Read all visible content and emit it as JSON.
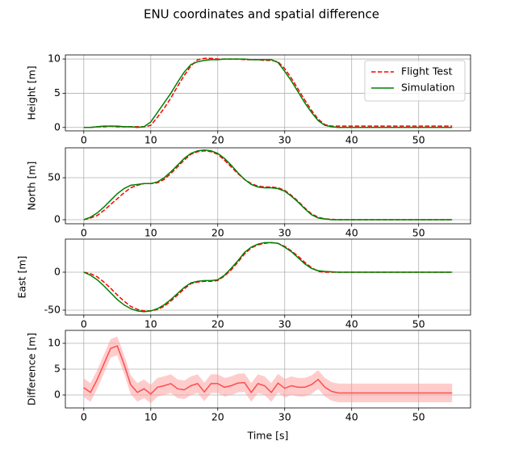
{
  "title": "ENU coordinates and spatial difference",
  "chart_data": [
    {
      "type": "line",
      "y_label": "Height [m]",
      "x": [
        0,
        1,
        2,
        3,
        4,
        5,
        6,
        7,
        8,
        9,
        10,
        11,
        12,
        13,
        14,
        15,
        16,
        17,
        18,
        19,
        20,
        21,
        22,
        23,
        24,
        25,
        26,
        27,
        28,
        29,
        30,
        31,
        32,
        33,
        34,
        35,
        36,
        37,
        38,
        40,
        45,
        50,
        55
      ],
      "series": [
        {
          "name": "Flight Test",
          "color": "#ff0000",
          "style": "dashed",
          "values": [
            0,
            0,
            0.1,
            0.1,
            0.2,
            0.1,
            0.1,
            0.1,
            0.1,
            0.1,
            0.3,
            1.5,
            2.8,
            4.3,
            6,
            7.6,
            9,
            9.9,
            10.1,
            10.1,
            10,
            10,
            10,
            10,
            9.9,
            9.9,
            9.9,
            9.8,
            9.8,
            9.6,
            8.6,
            7.2,
            5.6,
            4,
            2.5,
            1.2,
            0.4,
            0.2,
            0.2,
            0.2,
            0.2,
            0.2,
            0.2
          ]
        },
        {
          "name": "Simulation",
          "color": "#008000",
          "style": "solid",
          "values": [
            0,
            0,
            0.1,
            0.2,
            0.2,
            0.2,
            0.1,
            0.1,
            0,
            0.1,
            0.8,
            2.2,
            3.6,
            5,
            6.6,
            8.1,
            9.2,
            9.6,
            9.8,
            9.9,
            9.9,
            10,
            10,
            10,
            10,
            9.9,
            9.9,
            9.9,
            9.9,
            9.5,
            8.2,
            6.8,
            5.2,
            3.6,
            2.2,
            1,
            0.3,
            0.1,
            0,
            0,
            0,
            0,
            0
          ]
        }
      ],
      "xlim": [
        -2.75,
        57.75
      ],
      "xticks": [
        0,
        10,
        20,
        30,
        40,
        50
      ],
      "ylim": [
        -0.5,
        10.6
      ],
      "yticks": [
        0,
        5,
        10
      ],
      "grid": true,
      "legend": "upper right"
    },
    {
      "type": "line",
      "y_label": "North [m]",
      "x": [
        0,
        1,
        2,
        3,
        4,
        5,
        6,
        7,
        8,
        9,
        10,
        11,
        12,
        13,
        14,
        15,
        16,
        17,
        18,
        19,
        20,
        21,
        22,
        23,
        24,
        25,
        26,
        27,
        28,
        29,
        30,
        31,
        32,
        33,
        34,
        35,
        36,
        37,
        38,
        40,
        45,
        50,
        55
      ],
      "series": [
        {
          "color": "#ff0000",
          "style": "dashed",
          "values": [
            0,
            2,
            5,
            11,
            18,
            25,
            32,
            38,
            41,
            43,
            43,
            44,
            48,
            55,
            63,
            71,
            78,
            81,
            82,
            81,
            78,
            71,
            63,
            55,
            48,
            43,
            40,
            39,
            39,
            38,
            35,
            29,
            22,
            14,
            7,
            3,
            1,
            0.5,
            0,
            0,
            0,
            0,
            0
          ]
        },
        {
          "color": "#008000",
          "style": "solid",
          "values": [
            0,
            3,
            8,
            15,
            23,
            31,
            37,
            41,
            42,
            43,
            43,
            45,
            50,
            57,
            65,
            73,
            79,
            82,
            83,
            82,
            79,
            73,
            65,
            56,
            48,
            42,
            39,
            38,
            38,
            37,
            34,
            28,
            21,
            13,
            6,
            2,
            1,
            0,
            0,
            0,
            0,
            0,
            0
          ]
        }
      ],
      "xlim": [
        -2.75,
        57.75
      ],
      "xticks": [
        0,
        10,
        20,
        30,
        40,
        50
      ],
      "ylim": [
        -4.8,
        85.6
      ],
      "yticks": [
        0,
        50
      ],
      "grid": true
    },
    {
      "type": "line",
      "y_label": "East [m]",
      "x": [
        0,
        1,
        2,
        3,
        4,
        5,
        6,
        7,
        8,
        9,
        10,
        11,
        12,
        13,
        14,
        15,
        16,
        17,
        18,
        19,
        20,
        21,
        22,
        23,
        24,
        25,
        26,
        27,
        28,
        29,
        30,
        31,
        32,
        33,
        34,
        35,
        36,
        37,
        38,
        40,
        45,
        50,
        55
      ],
      "series": [
        {
          "color": "#ff0000",
          "style": "dashed",
          "values": [
            0,
            -2,
            -6,
            -13,
            -21,
            -30,
            -38,
            -45,
            -49,
            -51,
            -51,
            -49,
            -45,
            -38,
            -30,
            -22,
            -15,
            -13,
            -12,
            -12,
            -11,
            -5,
            3,
            13,
            24,
            32,
            36,
            38,
            39,
            38,
            34,
            28,
            21,
            13,
            6,
            1,
            0,
            0,
            0,
            0,
            0,
            0,
            0
          ]
        },
        {
          "color": "#008000",
          "style": "solid",
          "values": [
            0,
            -4,
            -10,
            -18,
            -27,
            -36,
            -43,
            -48,
            -51,
            -52,
            -51,
            -48,
            -43,
            -36,
            -28,
            -20,
            -14,
            -12,
            -11,
            -11,
            -10,
            -4,
            5,
            15,
            26,
            33,
            37,
            39,
            39,
            38,
            33,
            27,
            19,
            11,
            5,
            2,
            1,
            0.5,
            0,
            0,
            0,
            0,
            0
          ]
        }
      ],
      "xlim": [
        -2.75,
        57.75
      ],
      "xticks": [
        0,
        10,
        20,
        30,
        40,
        50
      ],
      "ylim": [
        -56.4,
        43.6
      ],
      "yticks": [
        -50,
        0
      ],
      "grid": true
    },
    {
      "type": "line",
      "y_label": "Difference [m]",
      "x_label": "Time [s]",
      "x": [
        0,
        1,
        2,
        3,
        4,
        5,
        6,
        7,
        8,
        9,
        10,
        11,
        12,
        13,
        14,
        15,
        16,
        17,
        18,
        19,
        20,
        21,
        22,
        23,
        24,
        25,
        26,
        27,
        28,
        29,
        30,
        31,
        32,
        33,
        34,
        35,
        36,
        37,
        38,
        40,
        45,
        50,
        55
      ],
      "series": [
        {
          "color": "#ff0000",
          "style": "solid",
          "values": [
            1.4,
            0.5,
            3,
            6,
            9,
            9.5,
            6,
            2,
            0.5,
            1.2,
            0.2,
            1.5,
            1.8,
            2.2,
            1.2,
            1,
            1.8,
            2.2,
            0.6,
            2.2,
            2.2,
            1.5,
            1.8,
            2.3,
            2.4,
            0.5,
            2.2,
            1.8,
            0.5,
            2.3,
            1.3,
            1.8,
            1.5,
            1.5,
            2,
            3,
            1.5,
            0.7,
            0.4,
            0.4,
            0.4,
            0.4,
            0.4
          ]
        },
        {
          "color": "#ff9999",
          "style": "band",
          "upper": [
            3.2,
            2.3,
            4.8,
            7.8,
            10.8,
            11.3,
            7.8,
            3.8,
            2.3,
            3,
            2,
            3.3,
            3.6,
            4,
            3,
            2.8,
            3.6,
            4,
            2.4,
            4,
            4,
            3.3,
            3.6,
            4.1,
            4.2,
            2.3,
            4,
            3.6,
            2.3,
            4.1,
            3.1,
            3.6,
            3.3,
            3.3,
            3.8,
            4.8,
            3.3,
            2.5,
            2.2,
            2.2,
            2.2,
            2.2,
            2.2
          ],
          "lower": [
            -0.4,
            -1.3,
            1.2,
            4.2,
            7.2,
            7.7,
            4.2,
            0.2,
            -1.3,
            -0.6,
            -1.6,
            -0.3,
            0,
            0.4,
            -0.6,
            -0.8,
            0,
            0.4,
            -1.2,
            0.4,
            0.4,
            -0.3,
            0,
            0.5,
            0.6,
            -1.3,
            0.4,
            0,
            -1.3,
            0.5,
            -0.5,
            0,
            -0.3,
            -0.3,
            0.2,
            1.2,
            -0.3,
            -1.1,
            -1.4,
            -1.4,
            -1.4,
            -1.4,
            -1.4
          ]
        }
      ],
      "xlim": [
        -2.75,
        57.75
      ],
      "xticks": [
        0,
        10,
        20,
        30,
        40,
        50
      ],
      "ylim": [
        -2.5,
        12.5
      ],
      "yticks": [
        0,
        5,
        10
      ],
      "grid": true
    }
  ]
}
